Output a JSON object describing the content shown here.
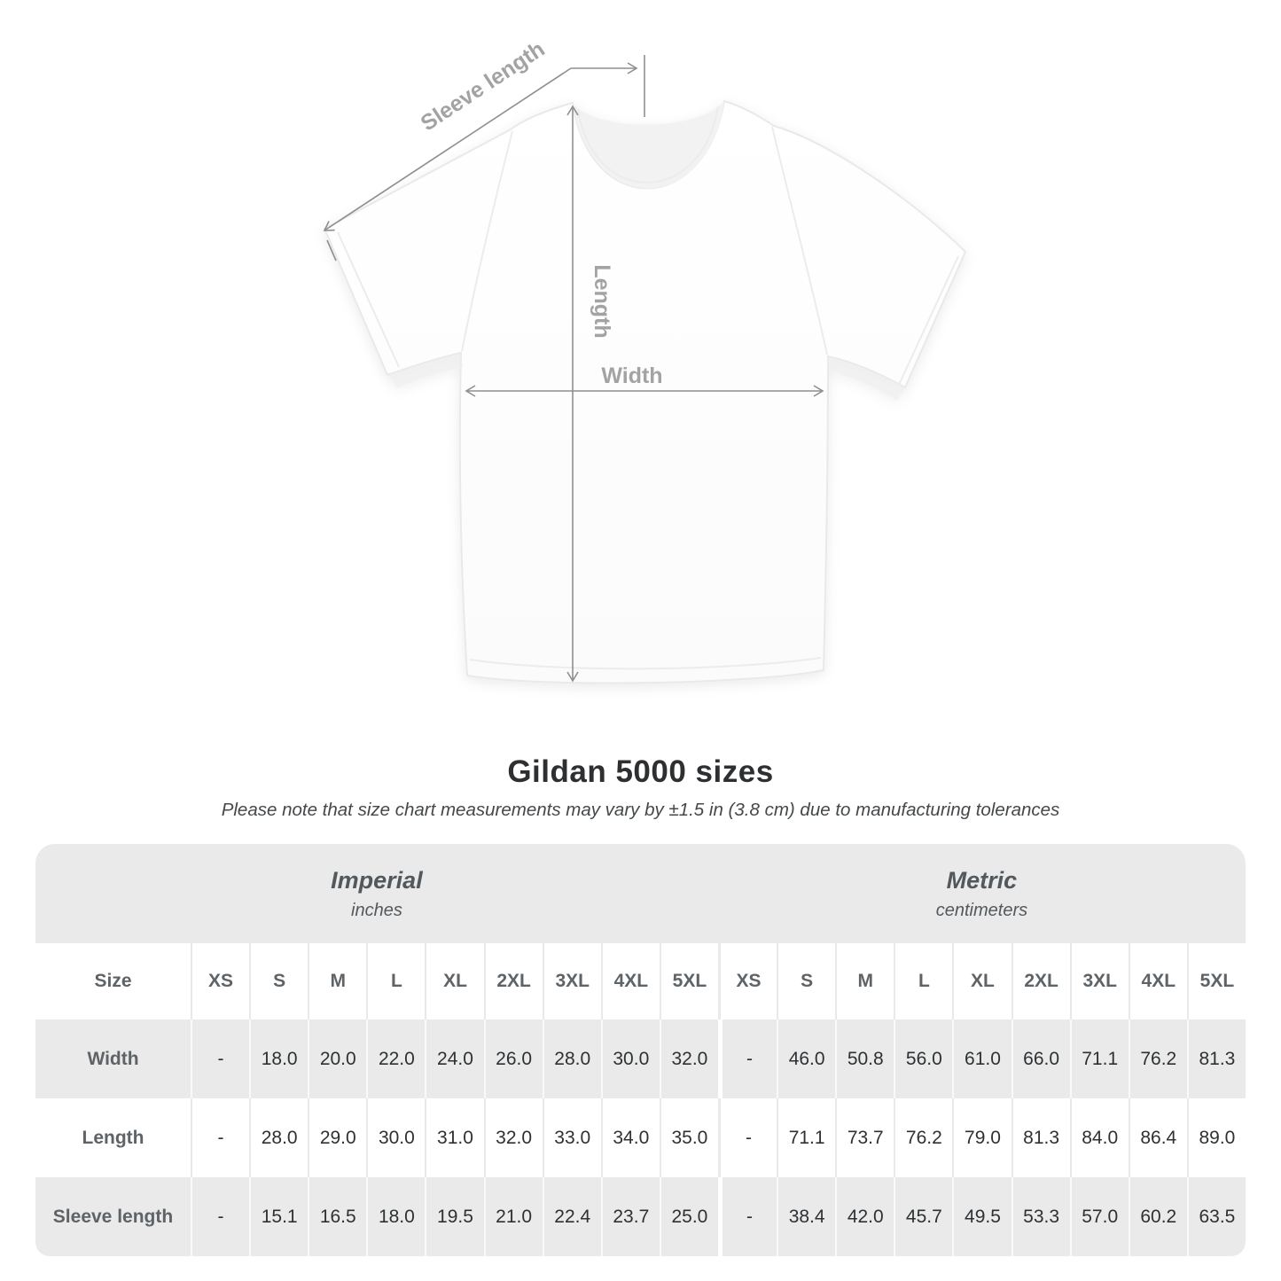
{
  "diagram": {
    "labels": {
      "sleeve_length": "Sleeve length",
      "length": "Length",
      "width": "Width"
    }
  },
  "title": "Gildan 5000 sizes",
  "subtitle": "Please note that size chart measurements may vary by ±1.5 in (3.8 cm) due to manufacturing tolerances",
  "table": {
    "groups": [
      {
        "label": "Imperial",
        "unit": "inches"
      },
      {
        "label": "Metric",
        "unit": "centimeters"
      }
    ],
    "size_header": "Size",
    "sizes": [
      "XS",
      "S",
      "M",
      "L",
      "XL",
      "2XL",
      "3XL",
      "4XL",
      "5XL"
    ],
    "rows": [
      {
        "label": "Width",
        "imperial": [
          "-",
          "18.0",
          "20.0",
          "22.0",
          "24.0",
          "26.0",
          "28.0",
          "30.0",
          "32.0"
        ],
        "metric": [
          "-",
          "46.0",
          "50.8",
          "56.0",
          "61.0",
          "66.0",
          "71.1",
          "76.2",
          "81.3"
        ]
      },
      {
        "label": "Length",
        "imperial": [
          "-",
          "28.0",
          "29.0",
          "30.0",
          "31.0",
          "32.0",
          "33.0",
          "34.0",
          "35.0"
        ],
        "metric": [
          "-",
          "71.1",
          "73.7",
          "76.2",
          "79.0",
          "81.3",
          "84.0",
          "86.4",
          "89.0"
        ]
      },
      {
        "label": "Sleeve length",
        "imperial": [
          "-",
          "15.1",
          "16.5",
          "18.0",
          "19.5",
          "21.0",
          "22.4",
          "23.7",
          "25.0"
        ],
        "metric": [
          "-",
          "38.4",
          "42.0",
          "45.7",
          "49.5",
          "53.3",
          "57.0",
          "60.2",
          "63.5"
        ]
      }
    ]
  },
  "colors": {
    "page_bg": "#ffffff",
    "band_bg": "#eaeaea",
    "alt_row_bg": "#eaeaea",
    "header_text": "#5d6367",
    "value_text": "#2e3133",
    "dimension_gray": "#8f8f8f",
    "label_gray": "#a3a3a3"
  }
}
